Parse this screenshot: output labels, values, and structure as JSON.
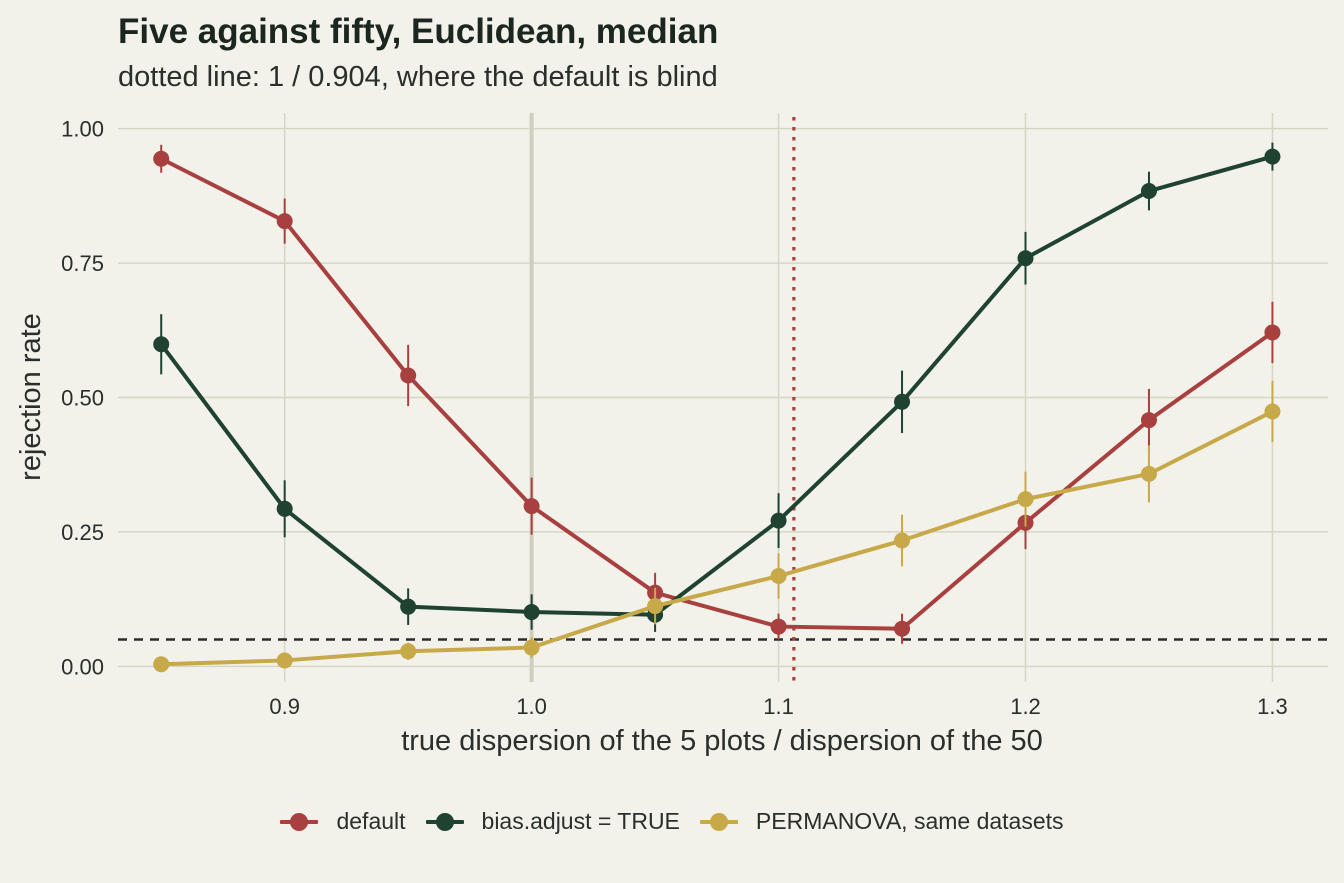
{
  "chart_data": {
    "type": "line",
    "title": "Five against fifty, Euclidean, median",
    "subtitle": "dotted line: 1 / 0.904, where the default is blind",
    "xlabel": "true dispersion of the 5 plots / dispersion of the 50",
    "ylabel": "rejection rate",
    "xlim": [
      0.8325,
      1.3225
    ],
    "ylim": [
      -0.0291,
      1.0291
    ],
    "x_ticks": [
      0.9,
      1.0,
      1.1,
      1.2,
      1.3
    ],
    "x_tick_labels": [
      "0.9",
      "1.0",
      "1.1",
      "1.2",
      "1.3"
    ],
    "y_ticks": [
      0,
      0.25,
      0.5,
      0.75,
      1.0
    ],
    "y_tick_labels": [
      "0.00",
      "0.25",
      "0.50",
      "0.75",
      "1.00"
    ],
    "grid": true,
    "x": [
      0.85,
      0.9,
      0.95,
      1.0,
      1.05,
      1.1,
      1.15,
      1.2,
      1.25,
      1.3
    ],
    "reference_lines": [
      {
        "kind": "horizontal",
        "style": "dashed",
        "value": 0.05,
        "color": "#2b2b2b"
      },
      {
        "kind": "vertical",
        "style": "dotted",
        "value": 1.1062,
        "color": "#a84040"
      },
      {
        "kind": "vertical",
        "style": "solid",
        "value": 1.0,
        "color": "#cfcfbf"
      }
    ],
    "legend_position": "bottom",
    "series": [
      {
        "name": "default",
        "color": "#a84040",
        "values": [
          0.944,
          0.828,
          0.541,
          0.298,
          0.137,
          0.074,
          0.07,
          0.267,
          0.458,
          0.621
        ],
        "lower": [
          0.918,
          0.786,
          0.484,
          0.245,
          0.1,
          0.05,
          0.042,
          0.218,
          0.4,
          0.564
        ],
        "upper": [
          0.97,
          0.87,
          0.598,
          0.351,
          0.174,
          0.098,
          0.098,
          0.316,
          0.516,
          0.678
        ]
      },
      {
        "name": "bias.adjust = TRUE",
        "color": "#1f4330",
        "values": [
          0.599,
          0.293,
          0.111,
          0.101,
          0.096,
          0.271,
          0.492,
          0.759,
          0.884,
          0.948
        ],
        "lower": [
          0.543,
          0.24,
          0.077,
          0.068,
          0.064,
          0.22,
          0.434,
          0.71,
          0.848,
          0.922
        ],
        "upper": [
          0.655,
          0.346,
          0.145,
          0.134,
          0.128,
          0.322,
          0.55,
          0.808,
          0.92,
          0.974
        ]
      },
      {
        "name": "PERMANOVA, same datasets",
        "color": "#c7a94a",
        "values": [
          0.004,
          0.011,
          0.028,
          0.035,
          0.112,
          0.168,
          0.234,
          0.311,
          0.358,
          0.474
        ],
        "lower": [
          0.0,
          0.002,
          0.012,
          0.016,
          0.078,
          0.126,
          0.186,
          0.26,
          0.305,
          0.417
        ],
        "upper": [
          0.01,
          0.02,
          0.044,
          0.054,
          0.146,
          0.21,
          0.282,
          0.362,
          0.411,
          0.531
        ]
      }
    ]
  }
}
